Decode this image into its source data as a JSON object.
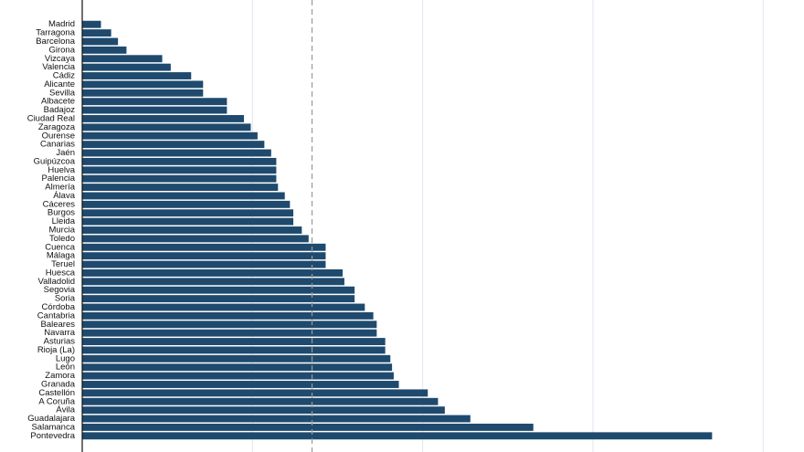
{
  "chart_data": {
    "type": "barh",
    "categories": [
      "Madrid",
      "Tarragona",
      "Barcelona",
      "Girona",
      "Vizcaya",
      "Valencia",
      "Cádiz",
      "Alicante",
      "Sevilla",
      "Albacete",
      "Badajoz",
      "Ciudad Real",
      "Zaragoza",
      "Ourense",
      "Canarias",
      "Jaén",
      "Guipúzcoa",
      "Huelva",
      "Palencia",
      "Almería",
      "Álava",
      "Cáceres",
      "Burgos",
      "Lleida",
      "Murcia",
      "Toledo",
      "Cuenca",
      "Málaga",
      "Teruel",
      "Huesca",
      "Valladolid",
      "Segovia",
      "Soria",
      "Córdoba",
      "Cantabria",
      "Baleares",
      "Navarra",
      "Asturias",
      "Rioja (La)",
      "Lugo",
      "León",
      "Zamora",
      "Granada",
      "Castellón",
      "A Coruña",
      "Ávila",
      "Guadalajara",
      "Salamanca",
      "Pontevedra"
    ],
    "values": [
      1.1,
      1.7,
      2.1,
      2.6,
      4.7,
      5.2,
      6.4,
      7.1,
      7.1,
      8.5,
      8.5,
      9.5,
      9.9,
      10.3,
      10.7,
      11.1,
      11.4,
      11.4,
      11.4,
      11.5,
      11.9,
      12.2,
      12.4,
      12.4,
      12.9,
      13.3,
      14.3,
      14.3,
      14.3,
      15.3,
      15.4,
      16.0,
      16.0,
      16.6,
      17.1,
      17.3,
      17.3,
      17.8,
      17.8,
      18.1,
      18.2,
      18.3,
      18.6,
      20.3,
      20.9,
      21.3,
      22.8,
      26.5,
      37.0
    ],
    "color": "#1f4a6e",
    "xlim": [
      0,
      42.4
    ],
    "xticks": [
      10,
      20,
      30,
      40
    ],
    "show_tick_labels": false,
    "grid": true,
    "reference_line": 13.5
  }
}
